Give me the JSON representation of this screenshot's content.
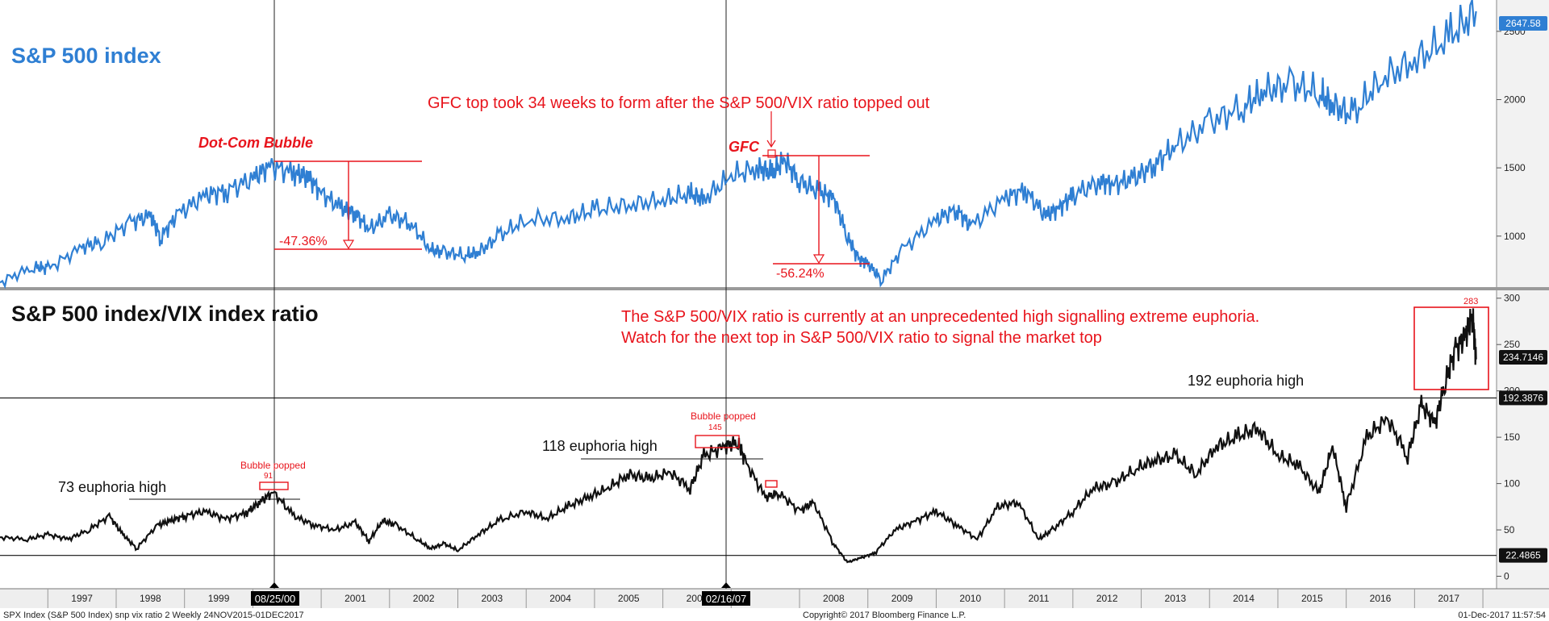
{
  "chart_data": [
    {
      "type": "line",
      "title": "S&P 500 index",
      "title_color": "#2f7fd3",
      "series_color": "#2f7fd3",
      "ylim": [
        650,
        2700
      ],
      "yticks": [
        1000,
        1500,
        2000,
        2500
      ],
      "last_value_label": "2647.58",
      "series": [
        {
          "x": [
            1996.3,
            1996.8,
            1997.0,
            1997.5,
            1997.8,
            1998.2,
            1998.5,
            1998.65,
            1998.9,
            1999.3,
            1999.6,
            2000.0,
            2000.25,
            2000.6,
            2000.8,
            2001.0,
            2001.3,
            2001.5,
            2001.7,
            2002.0,
            2002.3,
            2002.6,
            2002.8,
            2003.1,
            2003.3,
            2003.6,
            2004.0,
            2004.6,
            2005.0,
            2005.5,
            2006.0,
            2006.4,
            2006.6,
            2007.0,
            2007.4,
            2007.6,
            2007.78,
            2008.0,
            2008.3,
            2008.5,
            2008.7,
            2008.85,
            2009.0,
            2009.2,
            2009.5,
            2010.0,
            2010.3,
            2010.5,
            2011.0,
            2011.3,
            2011.6,
            2011.8,
            2012.0,
            2012.4,
            2012.6,
            2012.9,
            2013.2,
            2013.5,
            2014.0,
            2014.5,
            2014.8,
            2015.2,
            2015.6,
            2015.8,
            2016.1,
            2016.5,
            2017.0,
            2017.5,
            2017.9
          ],
          "values": [
            660,
            780,
            760,
            920,
            960,
            1100,
            1150,
            990,
            1160,
            1300,
            1330,
            1420,
            1520,
            1460,
            1440,
            1320,
            1200,
            1170,
            1050,
            1150,
            1100,
            900,
            880,
            860,
            880,
            1000,
            1120,
            1130,
            1190,
            1230,
            1260,
            1310,
            1270,
            1440,
            1500,
            1460,
            1560,
            1400,
            1320,
            1280,
            1000,
            840,
            800,
            680,
            900,
            1120,
            1200,
            1070,
            1280,
            1340,
            1150,
            1210,
            1300,
            1400,
            1380,
            1420,
            1530,
            1660,
            1830,
            1950,
            2060,
            2110,
            2050,
            1960,
            1880,
            2150,
            2280,
            2450,
            2647
          ]
        }
      ],
      "annotations": [
        {
          "text": "Dot-Com Bubble"
        },
        {
          "text": "GFC"
        },
        {
          "text": "GFC top took 34 weeks to form after the S&P 500/VIX ratio topped out"
        },
        {
          "text": "-47.36%"
        },
        {
          "text": "-56.24%"
        }
      ]
    },
    {
      "type": "line",
      "title": "S&P 500 index/VIX index ratio",
      "series_color": "#111111",
      "ylim": [
        -10,
        305
      ],
      "yticks": [
        0,
        50,
        100,
        150,
        200,
        250,
        300
      ],
      "hlines": [
        {
          "value": 192.3876,
          "label": "192.3876"
        },
        {
          "value": 22.4865,
          "label": "22.4865"
        }
      ],
      "last_value_label": "234.7146",
      "series": [
        {
          "x": [
            1996.3,
            1996.7,
            1997.0,
            1997.3,
            1997.6,
            1997.9,
            1998.1,
            1998.3,
            1998.6,
            1998.8,
            1999.0,
            1999.3,
            1999.6,
            1999.9,
            2000.1,
            2000.3,
            2000.6,
            2000.9,
            2001.2,
            2001.5,
            2001.7,
            2001.9,
            2002.1,
            2002.4,
            2002.6,
            2002.8,
            2003.0,
            2003.3,
            2003.6,
            2004.0,
            2004.3,
            2004.6,
            2004.9,
            2005.2,
            2005.5,
            2005.8,
            2006.1,
            2006.4,
            2006.6,
            2006.9,
            2007.1,
            2007.2,
            2007.5,
            2007.7,
            2008.0,
            2008.2,
            2008.5,
            2008.7,
            2008.9,
            2009.1,
            2009.4,
            2009.7,
            2010.0,
            2010.3,
            2010.6,
            2010.9,
            2011.2,
            2011.5,
            2011.7,
            2012.0,
            2012.3,
            2012.6,
            2012.9,
            2013.2,
            2013.5,
            2013.8,
            2014.1,
            2014.4,
            2014.7,
            2015.0,
            2015.3,
            2015.6,
            2015.8,
            2016.0,
            2016.3,
            2016.6,
            2016.9,
            2017.1,
            2017.3,
            2017.45,
            2017.6,
            2017.75,
            2017.85,
            2017.9
          ],
          "values": [
            42,
            40,
            45,
            40,
            50,
            65,
            45,
            30,
            55,
            60,
            65,
            70,
            62,
            68,
            80,
            91,
            65,
            55,
            50,
            58,
            38,
            60,
            55,
            40,
            30,
            35,
            28,
            45,
            60,
            70,
            62,
            75,
            85,
            95,
            110,
            105,
            112,
            95,
            130,
            140,
            145,
            125,
            85,
            90,
            70,
            80,
            35,
            15,
            20,
            25,
            50,
            60,
            70,
            55,
            40,
            75,
            80,
            40,
            50,
            70,
            95,
            100,
            115,
            125,
            130,
            110,
            140,
            150,
            160,
            130,
            120,
            90,
            140,
            75,
            150,
            170,
            130,
            185,
            165,
            210,
            245,
            260,
            283,
            234
          ]
        }
      ],
      "annotations": [
        {
          "text": "The S&P 500/VIX ratio is currently at an unprecedented high signalling extreme euphoria."
        },
        {
          "text": "Watch for the next top in S&P 500/VIX ratio to signal the market top"
        },
        {
          "text": "73 euphoria high"
        },
        {
          "text": "118 euphoria high"
        },
        {
          "text": "192 euphoria high"
        },
        {
          "text": "Bubble popped",
          "value": "91"
        },
        {
          "text": "Bubble popped",
          "value": "145"
        },
        {
          "text": "283"
        }
      ]
    }
  ],
  "x_axis": {
    "year_ticks": [
      "1997",
      "1998",
      "1999",
      "2001",
      "2002",
      "2003",
      "2004",
      "2005",
      "2006",
      "2008",
      "2009",
      "2010",
      "2011",
      "2012",
      "2013",
      "2014",
      "2015",
      "2016",
      "2017"
    ],
    "date_markers": [
      "08/25/00",
      "02/16/07"
    ]
  },
  "footer": {
    "left": "SPX Index (S&P 500 Index) snp vix ratio 2  Weekly 24NOV2015-01DEC2017",
    "center": "Copyright© 2017 Bloomberg Finance L.P.",
    "right": "01-Dec-2017 11:57:54"
  }
}
